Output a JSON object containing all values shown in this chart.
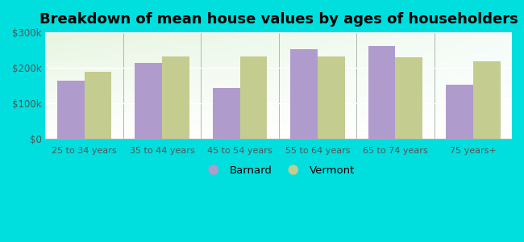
{
  "title": "Breakdown of mean house values by ages of householders",
  "categories": [
    "25 to 34 years",
    "35 to 44 years",
    "45 to 54 years",
    "55 to 64 years",
    "65 to 74 years",
    "75 years+"
  ],
  "barnard_values": [
    163000,
    213000,
    143000,
    252000,
    262000,
    152000
  ],
  "vermont_values": [
    188000,
    233000,
    233000,
    232000,
    230000,
    218000
  ],
  "barnard_color": "#b09ccc",
  "vermont_color": "#c4cc90",
  "background_outer": "#00dede",
  "background_inner_tl": "#e8f5e0",
  "background_inner_tr": "#f5faf8",
  "background_inner_br": "#ffffff",
  "ylim": [
    0,
    300000
  ],
  "yticks": [
    0,
    100000,
    200000,
    300000
  ],
  "ytick_labels": [
    "$0",
    "$100k",
    "$200k",
    "$300k"
  ],
  "legend_barnard": "Barnard",
  "legend_vermont": "Vermont",
  "title_fontsize": 13,
  "bar_width": 0.35,
  "separator_color": "#aabbaa"
}
